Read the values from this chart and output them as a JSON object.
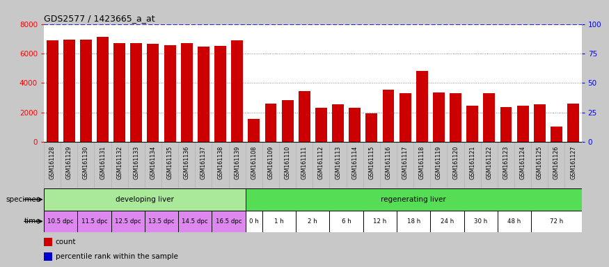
{
  "title": "GDS2577 / 1423665_a_at",
  "samples": [
    "GSM161128",
    "GSM161129",
    "GSM161130",
    "GSM161131",
    "GSM161132",
    "GSM161133",
    "GSM161134",
    "GSM161135",
    "GSM161136",
    "GSM161137",
    "GSM161138",
    "GSM161139",
    "GSM161108",
    "GSM161109",
    "GSM161110",
    "GSM161111",
    "GSM161112",
    "GSM161113",
    "GSM161114",
    "GSM161115",
    "GSM161116",
    "GSM161117",
    "GSM161118",
    "GSM161119",
    "GSM161120",
    "GSM161121",
    "GSM161122",
    "GSM161123",
    "GSM161124",
    "GSM161125",
    "GSM161126",
    "GSM161127"
  ],
  "counts": [
    6900,
    6950,
    6950,
    7150,
    6700,
    6700,
    6650,
    6550,
    6700,
    6450,
    6500,
    6900,
    1550,
    2600,
    2850,
    3450,
    2300,
    2550,
    2300,
    1950,
    3550,
    3300,
    4800,
    3350,
    3300,
    2450,
    3300,
    2350,
    2450,
    2550,
    1050,
    2600
  ],
  "bar_color": "#cc0000",
  "percentile_color": "#0000cc",
  "ylim_left": [
    0,
    8000
  ],
  "ylim_right": [
    0,
    100
  ],
  "yticks_left": [
    0,
    2000,
    4000,
    6000,
    8000
  ],
  "yticks_right": [
    0,
    25,
    50,
    75,
    100
  ],
  "specimen_groups": [
    {
      "text": "developing liver",
      "start": 0,
      "end": 12,
      "color": "#aae89a"
    },
    {
      "text": "regenerating liver",
      "start": 12,
      "end": 32,
      "color": "#55dd55"
    }
  ],
  "time_groups": [
    {
      "text": "10.5 dpc",
      "start": 0,
      "end": 2
    },
    {
      "text": "11.5 dpc",
      "start": 2,
      "end": 4
    },
    {
      "text": "12.5 dpc",
      "start": 4,
      "end": 6
    },
    {
      "text": "13.5 dpc",
      "start": 6,
      "end": 8
    },
    {
      "text": "14.5 dpc",
      "start": 8,
      "end": 10
    },
    {
      "text": "16.5 dpc",
      "start": 10,
      "end": 12
    },
    {
      "text": "0 h",
      "start": 12,
      "end": 13
    },
    {
      "text": "1 h",
      "start": 13,
      "end": 15
    },
    {
      "text": "2 h",
      "start": 15,
      "end": 17
    },
    {
      "text": "6 h",
      "start": 17,
      "end": 19
    },
    {
      "text": "12 h",
      "start": 19,
      "end": 21
    },
    {
      "text": "18 h",
      "start": 21,
      "end": 23
    },
    {
      "text": "24 h",
      "start": 23,
      "end": 25
    },
    {
      "text": "30 h",
      "start": 25,
      "end": 27
    },
    {
      "text": "48 h",
      "start": 27,
      "end": 29
    },
    {
      "text": "72 h",
      "start": 29,
      "end": 32
    }
  ],
  "dpc_color": "#dd88ee",
  "hour_color": "#ffffff",
  "spec_label": "specimen",
  "time_label": "time",
  "legend_items": [
    {
      "color": "#cc0000",
      "label": "count"
    },
    {
      "color": "#0000cc",
      "label": "percentile rank within the sample"
    }
  ],
  "fig_bg": "#c8c8c8",
  "plot_bg": "#ffffff",
  "ticklabel_bg": "#d8d8d8"
}
